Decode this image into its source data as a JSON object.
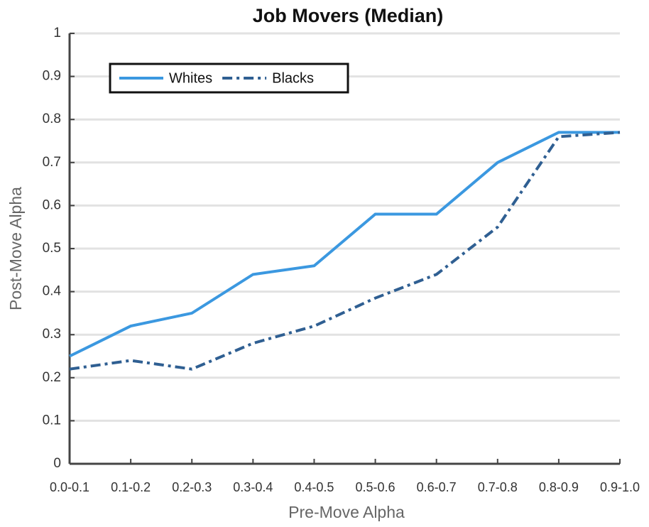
{
  "chart_data": {
    "type": "line",
    "title": "Job Movers (Median)",
    "x_label": "Pre-Move Alpha",
    "y_label": "Post-Move Alpha",
    "categories": [
      "0.0-0.1",
      "0.1-0.2",
      "0.2-0.3",
      "0.3-0.4",
      "0.4-0.5",
      "0.5-0.6",
      "0.6-0.7",
      "0.7-0.8",
      "0.8-0.9",
      "0.9-1.0"
    ],
    "series": [
      {
        "name": "Whites",
        "color": "#3b98e0",
        "dash": "solid",
        "values": [
          0.25,
          0.32,
          0.35,
          0.44,
          0.46,
          0.58,
          0.58,
          0.7,
          0.77,
          0.77
        ]
      },
      {
        "name": "Blacks",
        "color": "#2f5f92",
        "dash": "dashdot",
        "values": [
          0.22,
          0.24,
          0.22,
          0.28,
          0.32,
          0.385,
          0.44,
          0.55,
          0.76,
          0.77
        ]
      }
    ],
    "ylim": [
      0,
      1
    ],
    "yticks": [
      0,
      0.1,
      0.2,
      0.3,
      0.4,
      0.5,
      0.6,
      0.7,
      0.8,
      0.9,
      1
    ],
    "grid": true,
    "legend": "upper left"
  }
}
